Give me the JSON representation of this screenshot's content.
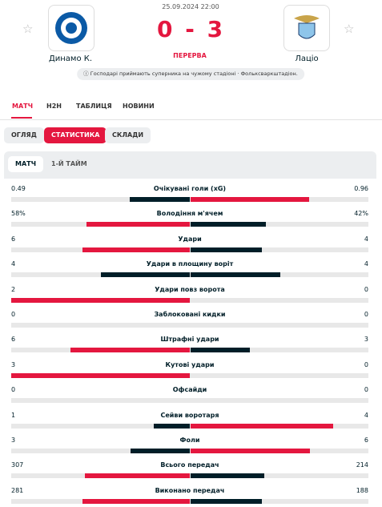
{
  "header": {
    "datetime": "25.09.2024 22:00",
    "home": "Динамо К.",
    "away": "Лаціо",
    "score": {
      "home": 0,
      "separator": "-",
      "away": 3
    },
    "status": "ПЕРЕРВА",
    "info": "Господарі приймають суперника на чужому стадіоні · Фольксваркштадіон."
  },
  "tabs": [
    "МАТЧ",
    "H2H",
    "ТАБЛИЦЯ",
    "НОВИНИ"
  ],
  "subtabs": [
    "ОГЛЯД",
    "СТАТИСТИКА",
    "СКЛАДИ"
  ],
  "periods": [
    "МАТЧ",
    "1-Й ТАЙМ"
  ],
  "stats": [
    {
      "label": "Очікувані голи (xG)",
      "home": 0.49,
      "away": 0.96
    },
    {
      "label": "Володіння м'ячем",
      "home": "58%",
      "away": "42%"
    },
    {
      "label": "Удари",
      "home": 6,
      "away": 4
    },
    {
      "label": "Удари в площину воріт",
      "home": 4,
      "away": 4
    },
    {
      "label": "Удари повз ворота",
      "home": 2,
      "away": 0
    },
    {
      "label": "Заблоковані кидки",
      "home": 0,
      "away": 0
    },
    {
      "label": "Штрафні удари",
      "home": 6,
      "away": 3
    },
    {
      "label": "Кутові удари",
      "home": 3,
      "away": 0
    },
    {
      "label": "Офсайди",
      "home": 0,
      "away": 0
    },
    {
      "label": "Сейви воротаря",
      "home": 1,
      "away": 4
    },
    {
      "label": "Фоли",
      "home": 3,
      "away": 6
    },
    {
      "label": "Всього передач",
      "home": 307,
      "away": 214
    },
    {
      "label": "Виконано передач",
      "home": 281,
      "away": 188
    }
  ]
}
